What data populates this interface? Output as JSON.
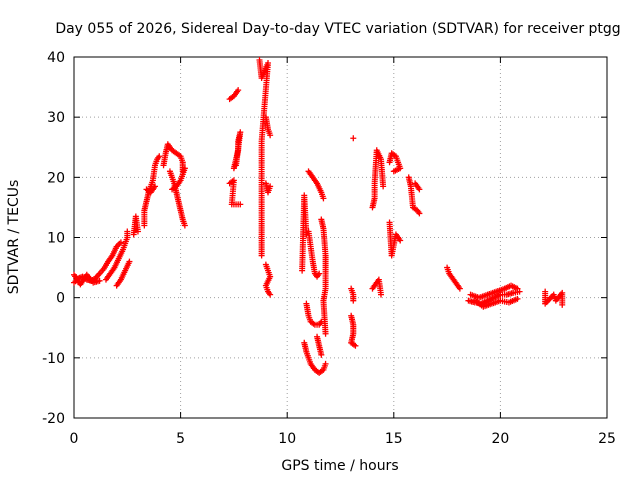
{
  "chart_data": {
    "type": "scatter",
    "title": "Day 055 of 2026, Sidereal Day-to-day VTEC variation (SDTVAR) for receiver ptgg",
    "xlabel": "GPS time / hours",
    "ylabel": "SDTVAR / TECUs",
    "xlim": [
      0,
      25
    ],
    "ylim": [
      -20,
      40
    ],
    "xticks": [
      "0",
      "5",
      "10",
      "15",
      "20",
      "25"
    ],
    "yticks": [
      "-20",
      "-10",
      "0",
      "10",
      "20",
      "30",
      "40"
    ],
    "grid": true,
    "marker": "plus",
    "color": "#ff0000",
    "segments": [
      [
        [
          0.0,
          2.5
        ],
        [
          0.2,
          3.2
        ],
        [
          0.4,
          3.5
        ],
        [
          0.6,
          3.0
        ],
        [
          0.8,
          2.8
        ],
        [
          1.0,
          3.2
        ],
        [
          1.2,
          4.0
        ],
        [
          1.4,
          4.8
        ],
        [
          1.6,
          6.0
        ],
        [
          1.8,
          7.0
        ],
        [
          2.0,
          8.5
        ],
        [
          2.2,
          9.2
        ]
      ],
      [
        [
          0.0,
          3.8
        ],
        [
          0.3,
          2.2
        ],
        [
          0.6,
          3.8
        ],
        [
          0.9,
          2.5
        ],
        [
          1.2,
          2.8
        ]
      ],
      [
        [
          1.5,
          3.0
        ],
        [
          1.7,
          4.0
        ],
        [
          1.9,
          5.0
        ],
        [
          2.1,
          6.5
        ],
        [
          2.3,
          8.0
        ],
        [
          2.5,
          10.0
        ],
        [
          2.5,
          11.0
        ]
      ],
      [
        [
          2.0,
          2.0
        ],
        [
          2.2,
          3.0
        ],
        [
          2.4,
          4.5
        ],
        [
          2.6,
          6.0
        ]
      ],
      [
        [
          2.8,
          10.5
        ],
        [
          2.9,
          13.5
        ],
        [
          3.0,
          11.0
        ]
      ],
      [
        [
          3.3,
          12.0
        ],
        [
          3.3,
          14.5
        ],
        [
          3.4,
          16.0
        ],
        [
          3.5,
          17.5
        ],
        [
          3.6,
          18.5
        ],
        [
          3.7,
          19.5
        ],
        [
          3.8,
          22.0
        ],
        [
          3.9,
          23.0
        ],
        [
          4.0,
          23.5
        ]
      ],
      [
        [
          3.4,
          18.0
        ],
        [
          3.6,
          17.5
        ],
        [
          3.8,
          18.5
        ]
      ],
      [
        [
          4.2,
          22.0
        ],
        [
          4.3,
          24.0
        ],
        [
          4.4,
          25.5
        ],
        [
          4.5,
          25.0
        ],
        [
          4.6,
          24.5
        ],
        [
          4.8,
          24.0
        ],
        [
          5.0,
          23.5
        ],
        [
          5.1,
          22.5
        ],
        [
          5.1,
          21.0
        ]
      ],
      [
        [
          4.5,
          21.0
        ],
        [
          4.6,
          20.0
        ],
        [
          4.7,
          19.0
        ],
        [
          4.8,
          17.5
        ],
        [
          4.9,
          16.0
        ],
        [
          5.0,
          14.5
        ],
        [
          5.1,
          13.0
        ],
        [
          5.2,
          12.0
        ]
      ],
      [
        [
          4.6,
          18.0
        ],
        [
          4.8,
          18.5
        ],
        [
          5.0,
          19.5
        ],
        [
          5.2,
          21.5
        ]
      ],
      [
        [
          7.3,
          19.0
        ],
        [
          7.5,
          19.5
        ],
        [
          7.4,
          15.5
        ],
        [
          7.8,
          15.5
        ]
      ],
      [
        [
          7.5,
          21.5
        ],
        [
          7.6,
          23.0
        ],
        [
          7.7,
          24.5
        ],
        [
          7.7,
          26.0
        ],
        [
          7.8,
          27.5
        ],
        [
          7.6,
          22.0
        ]
      ],
      [
        [
          7.3,
          33.0
        ],
        [
          7.5,
          33.5
        ],
        [
          7.7,
          34.5
        ]
      ],
      [
        [
          8.7,
          39.5
        ],
        [
          8.8,
          36.5
        ],
        [
          9.1,
          39.0
        ],
        [
          8.8,
          26.0
        ],
        [
          8.8,
          13.0
        ],
        [
          8.8,
          7.0
        ]
      ],
      [
        [
          9.0,
          30.0
        ],
        [
          9.1,
          28.0
        ],
        [
          9.2,
          27.0
        ]
      ],
      [
        [
          9.0,
          19.0
        ],
        [
          9.1,
          17.5
        ],
        [
          9.2,
          18.5
        ]
      ],
      [
        [
          9.0,
          5.5
        ],
        [
          9.1,
          4.5
        ],
        [
          9.2,
          3.5
        ],
        [
          9.0,
          2.0
        ],
        [
          9.1,
          1.0
        ],
        [
          9.2,
          0.5
        ]
      ],
      [
        [
          10.7,
          4.5
        ],
        [
          10.8,
          17.0
        ],
        [
          10.9,
          10.5
        ]
      ],
      [
        [
          11.0,
          21.0
        ],
        [
          11.2,
          20.0
        ],
        [
          11.4,
          19.0
        ],
        [
          11.6,
          17.5
        ],
        [
          11.7,
          16.5
        ]
      ],
      [
        [
          11.0,
          11.0
        ],
        [
          11.1,
          8.5
        ],
        [
          11.2,
          6.0
        ],
        [
          11.3,
          4.0
        ],
        [
          11.4,
          3.5
        ],
        [
          11.5,
          4.0
        ]
      ],
      [
        [
          10.9,
          -1.0
        ],
        [
          11.0,
          -3.0
        ],
        [
          11.1,
          -4.0
        ],
        [
          11.3,
          -4.5
        ],
        [
          11.5,
          -4.5
        ],
        [
          11.6,
          -4.0
        ]
      ],
      [
        [
          10.8,
          -7.5
        ],
        [
          10.9,
          -9.0
        ],
        [
          11.1,
          -11.0
        ],
        [
          11.3,
          -12.0
        ],
        [
          11.5,
          -12.5
        ],
        [
          11.7,
          -12.0
        ],
        [
          11.8,
          -11.0
        ]
      ],
      [
        [
          11.4,
          -6.5
        ],
        [
          11.5,
          -8.0
        ],
        [
          11.6,
          -9.5
        ]
      ],
      [
        [
          11.6,
          13.0
        ],
        [
          11.7,
          11.5
        ],
        [
          11.8,
          7.0
        ],
        [
          11.8,
          5.0
        ],
        [
          11.8,
          1.5
        ],
        [
          11.7,
          -0.5
        ],
        [
          11.8,
          -6.0
        ]
      ],
      [
        [
          13.1,
          26.5
        ]
      ],
      [
        [
          13.0,
          1.5
        ],
        [
          13.1,
          0.5
        ],
        [
          13.1,
          -0.5
        ]
      ],
      [
        [
          13.0,
          -3.0
        ],
        [
          13.1,
          -4.5
        ],
        [
          13.1,
          -6.0
        ],
        [
          13.0,
          -7.5
        ],
        [
          13.2,
          -8.0
        ]
      ],
      [
        [
          14.0,
          15.0
        ],
        [
          14.1,
          16.5
        ],
        [
          14.1,
          19.0
        ],
        [
          14.2,
          24.5
        ],
        [
          14.4,
          23.0
        ],
        [
          14.5,
          18.5
        ]
      ],
      [
        [
          14.0,
          1.5
        ],
        [
          14.3,
          3.0
        ],
        [
          14.4,
          0.5
        ]
      ],
      [
        [
          14.8,
          22.5
        ],
        [
          14.9,
          24.0
        ],
        [
          15.1,
          23.5
        ],
        [
          15.2,
          22.5
        ],
        [
          15.3,
          21.5
        ],
        [
          15.0,
          21.0
        ]
      ],
      [
        [
          14.8,
          12.5
        ],
        [
          14.9,
          7.0
        ],
        [
          15.1,
          10.5
        ],
        [
          15.3,
          9.5
        ]
      ],
      [
        [
          15.7,
          20.0
        ],
        [
          15.8,
          18.5
        ],
        [
          15.9,
          15.0
        ],
        [
          16.1,
          14.5
        ],
        [
          16.2,
          14.0
        ]
      ],
      [
        [
          16.0,
          19.0
        ],
        [
          16.2,
          18.0
        ]
      ],
      [
        [
          17.5,
          5.0
        ],
        [
          17.6,
          4.0
        ],
        [
          17.7,
          3.5
        ],
        [
          17.8,
          3.0
        ],
        [
          17.9,
          2.5
        ],
        [
          18.0,
          2.0
        ],
        [
          18.1,
          1.5
        ]
      ],
      [
        [
          18.5,
          -0.5
        ],
        [
          18.8,
          -0.8
        ],
        [
          19.1,
          -1.0
        ],
        [
          19.4,
          -0.5
        ],
        [
          19.7,
          0.0
        ],
        [
          20.0,
          0.5
        ],
        [
          20.3,
          0.5
        ],
        [
          20.6,
          0.8
        ],
        [
          20.9,
          1.0
        ]
      ],
      [
        [
          18.6,
          0.5
        ],
        [
          19.0,
          0.0
        ],
        [
          19.4,
          0.5
        ],
        [
          19.8,
          1.0
        ],
        [
          20.2,
          1.5
        ],
        [
          20.5,
          2.0
        ],
        [
          20.8,
          1.5
        ]
      ],
      [
        [
          18.8,
          -0.5
        ],
        [
          19.2,
          -1.5
        ],
        [
          19.6,
          -1.0
        ],
        [
          20.0,
          -0.5
        ],
        [
          20.4,
          -0.8
        ],
        [
          20.8,
          -0.2
        ]
      ],
      [
        [
          22.1,
          1.0
        ],
        [
          22.1,
          -1.0
        ],
        [
          22.5,
          0.5
        ],
        [
          22.6,
          -0.5
        ],
        [
          22.9,
          0.8
        ],
        [
          22.9,
          -1.2
        ]
      ]
    ]
  }
}
